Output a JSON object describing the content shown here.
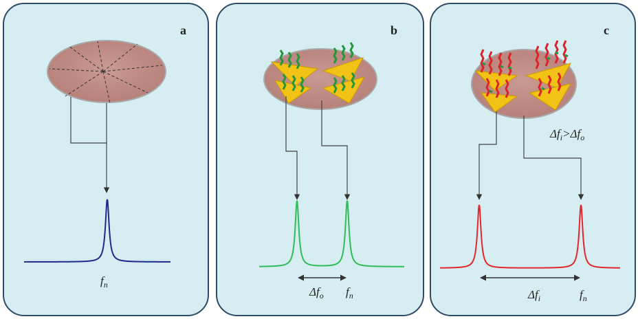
{
  "panels": [
    {
      "label": "a",
      "peak_label": {
        "text": "f",
        "sub": "n"
      }
    },
    {
      "label": "b",
      "shift_label": {
        "text": "Δf",
        "sub": "o"
      },
      "peak_label": {
        "text": "f",
        "sub": "n"
      }
    },
    {
      "label": "c",
      "shift_label": {
        "text": "Δf",
        "sub": "i"
      },
      "peak_label": {
        "text": "f",
        "sub": "n"
      },
      "condition": [
        {
          "text": "Δf",
          "sub": "i"
        },
        {
          "text": ">Δf",
          "sub": "o"
        }
      ]
    }
  ]
}
